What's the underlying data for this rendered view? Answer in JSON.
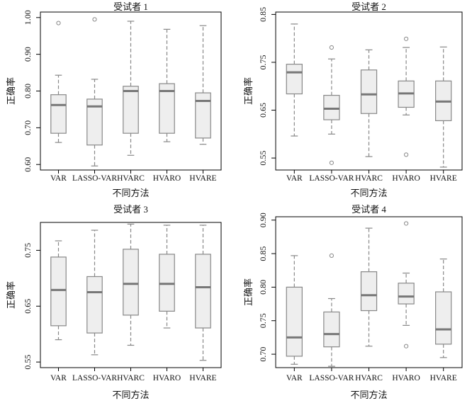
{
  "chart_data": [
    {
      "type": "box",
      "title": "受试者 1",
      "xlabel": "不同方法",
      "ylabel": "正确率",
      "ylim": [
        0.585,
        1.015
      ],
      "yticks": [
        0.6,
        0.7,
        0.8,
        0.9,
        1.0
      ],
      "ytick_labels": [
        "0.60",
        "0.70",
        "0.80",
        "0.90",
        "1.00"
      ],
      "categories": [
        "VAR",
        "LASSO-VAR",
        "HVARC",
        "HVARO",
        "HVARE"
      ],
      "boxes": [
        {
          "min": 0.66,
          "q1": 0.685,
          "median": 0.762,
          "q3": 0.79,
          "max": 0.843,
          "outliers": [
            0.985
          ]
        },
        {
          "min": 0.596,
          "q1": 0.653,
          "median": 0.758,
          "q3": 0.778,
          "max": 0.832,
          "outliers": [
            0.995
          ]
        },
        {
          "min": 0.625,
          "q1": 0.685,
          "median": 0.8,
          "q3": 0.813,
          "max": 0.99,
          "outliers": []
        },
        {
          "min": 0.662,
          "q1": 0.685,
          "median": 0.8,
          "q3": 0.82,
          "max": 0.968,
          "outliers": []
        },
        {
          "min": 0.655,
          "q1": 0.672,
          "median": 0.773,
          "q3": 0.795,
          "max": 0.978,
          "outliers": []
        }
      ]
    },
    {
      "type": "box",
      "title": "受试者 2",
      "xlabel": "不同方法",
      "ylabel": "正确率",
      "ylim": [
        0.525,
        0.855
      ],
      "yticks": [
        0.55,
        0.65,
        0.75,
        0.85
      ],
      "ytick_labels": [
        "0.55",
        "0.65",
        "0.75",
        "0.85"
      ],
      "categories": [
        "VAR",
        "LASSO-VAR",
        "HVARC",
        "HVARO",
        "HVARE"
      ],
      "boxes": [
        {
          "min": 0.596,
          "q1": 0.684,
          "median": 0.729,
          "q3": 0.746,
          "max": 0.83,
          "outliers": []
        },
        {
          "min": 0.6,
          "q1": 0.63,
          "median": 0.653,
          "q3": 0.681,
          "max": 0.757,
          "outliers": [
            0.54,
            0.781
          ]
        },
        {
          "min": 0.553,
          "q1": 0.643,
          "median": 0.683,
          "q3": 0.734,
          "max": 0.776,
          "outliers": []
        },
        {
          "min": 0.64,
          "q1": 0.656,
          "median": 0.685,
          "q3": 0.711,
          "max": 0.781,
          "outliers": [
            0.557,
            0.799
          ]
        },
        {
          "min": 0.531,
          "q1": 0.628,
          "median": 0.668,
          "q3": 0.711,
          "max": 0.782,
          "outliers": []
        }
      ]
    },
    {
      "type": "box",
      "title": "受试者 3",
      "xlabel": "不同方法",
      "ylabel": "正确率",
      "ylim": [
        0.54,
        0.8
      ],
      "yticks": [
        0.55,
        0.65,
        0.75
      ],
      "ytick_labels": [
        "0.55",
        "0.65",
        "0.75"
      ],
      "categories": [
        "VAR",
        "LASSO-VAR",
        "HVARC",
        "HVARO",
        "HVARE"
      ],
      "boxes": [
        {
          "min": 0.59,
          "q1": 0.615,
          "median": 0.679,
          "q3": 0.738,
          "max": 0.767,
          "outliers": []
        },
        {
          "min": 0.563,
          "q1": 0.602,
          "median": 0.675,
          "q3": 0.703,
          "max": 0.786,
          "outliers": []
        },
        {
          "min": 0.58,
          "q1": 0.634,
          "median": 0.69,
          "q3": 0.752,
          "max": 0.797,
          "outliers": []
        },
        {
          "min": 0.611,
          "q1": 0.641,
          "median": 0.69,
          "q3": 0.743,
          "max": 0.795,
          "outliers": []
        },
        {
          "min": 0.553,
          "q1": 0.611,
          "median": 0.684,
          "q3": 0.743,
          "max": 0.795,
          "outliers": []
        }
      ]
    },
    {
      "type": "box",
      "title": "受试者 4",
      "xlabel": "不同方法",
      "ylabel": "正确率",
      "ylim": [
        0.68,
        0.905
      ],
      "yticks": [
        0.7,
        0.75,
        0.8,
        0.85,
        0.9
      ],
      "ytick_labels": [
        "0.70",
        "0.75",
        "0.80",
        "0.85",
        "0.90"
      ],
      "categories": [
        "VAR",
        "LASSO-VAR",
        "HVARC",
        "HVARO",
        "HVARE"
      ],
      "boxes": [
        {
          "min": 0.685,
          "q1": 0.697,
          "median": 0.725,
          "q3": 0.8,
          "max": 0.847,
          "outliers": []
        },
        {
          "min": 0.682,
          "q1": 0.711,
          "median": 0.73,
          "q3": 0.763,
          "max": 0.783,
          "outliers": [
            0.847
          ]
        },
        {
          "min": 0.712,
          "q1": 0.765,
          "median": 0.788,
          "q3": 0.823,
          "max": 0.888,
          "outliers": []
        },
        {
          "min": 0.743,
          "q1": 0.775,
          "median": 0.786,
          "q3": 0.806,
          "max": 0.821,
          "outliers": [
            0.712,
            0.895
          ]
        },
        {
          "min": 0.695,
          "q1": 0.715,
          "median": 0.737,
          "q3": 0.793,
          "max": 0.842,
          "outliers": []
        }
      ]
    }
  ],
  "style": {
    "box_fill": "#eeeeee",
    "box_stroke": "#888888",
    "median_color": "#777777",
    "whisker_color": "#888888",
    "axis_color": "#000000"
  }
}
